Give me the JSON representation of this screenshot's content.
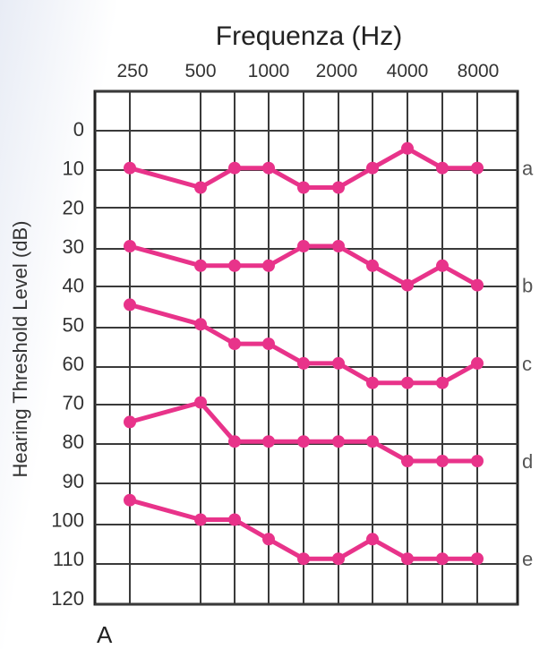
{
  "chart_data": {
    "type": "line",
    "title": "Frequenza (Hz)",
    "ylabel": "Hearing Threshold Level (dB)",
    "x_tick_labels": [
      "250",
      "500",
      "1000",
      "2000",
      "4000",
      "8000"
    ],
    "y_tick_labels": [
      "0",
      "10",
      "20",
      "30",
      "40",
      "50",
      "60",
      "70",
      "80",
      "90",
      "100",
      "110",
      "120"
    ],
    "ylim": [
      0,
      120
    ],
    "y_inverted": true,
    "panel_label": "A",
    "series": [
      {
        "name": "a",
        "values": [
          10,
          15,
          10,
          10,
          15,
          15,
          10,
          5,
          10,
          10
        ]
      },
      {
        "name": "b",
        "values": [
          30,
          35,
          35,
          35,
          30,
          30,
          35,
          40,
          35,
          40
        ]
      },
      {
        "name": "c",
        "values": [
          45,
          50,
          55,
          55,
          60,
          60,
          65,
          65,
          65,
          60
        ]
      },
      {
        "name": "d",
        "values": [
          75,
          70,
          80,
          80,
          80,
          80,
          80,
          85,
          85,
          85
        ]
      },
      {
        "name": "e",
        "values": [
          95,
          100,
          100,
          105,
          110,
          110,
          105,
          110,
          110,
          110
        ]
      }
    ],
    "colors": {
      "line": "#e8338a",
      "grid": "#3a3a3a"
    }
  }
}
